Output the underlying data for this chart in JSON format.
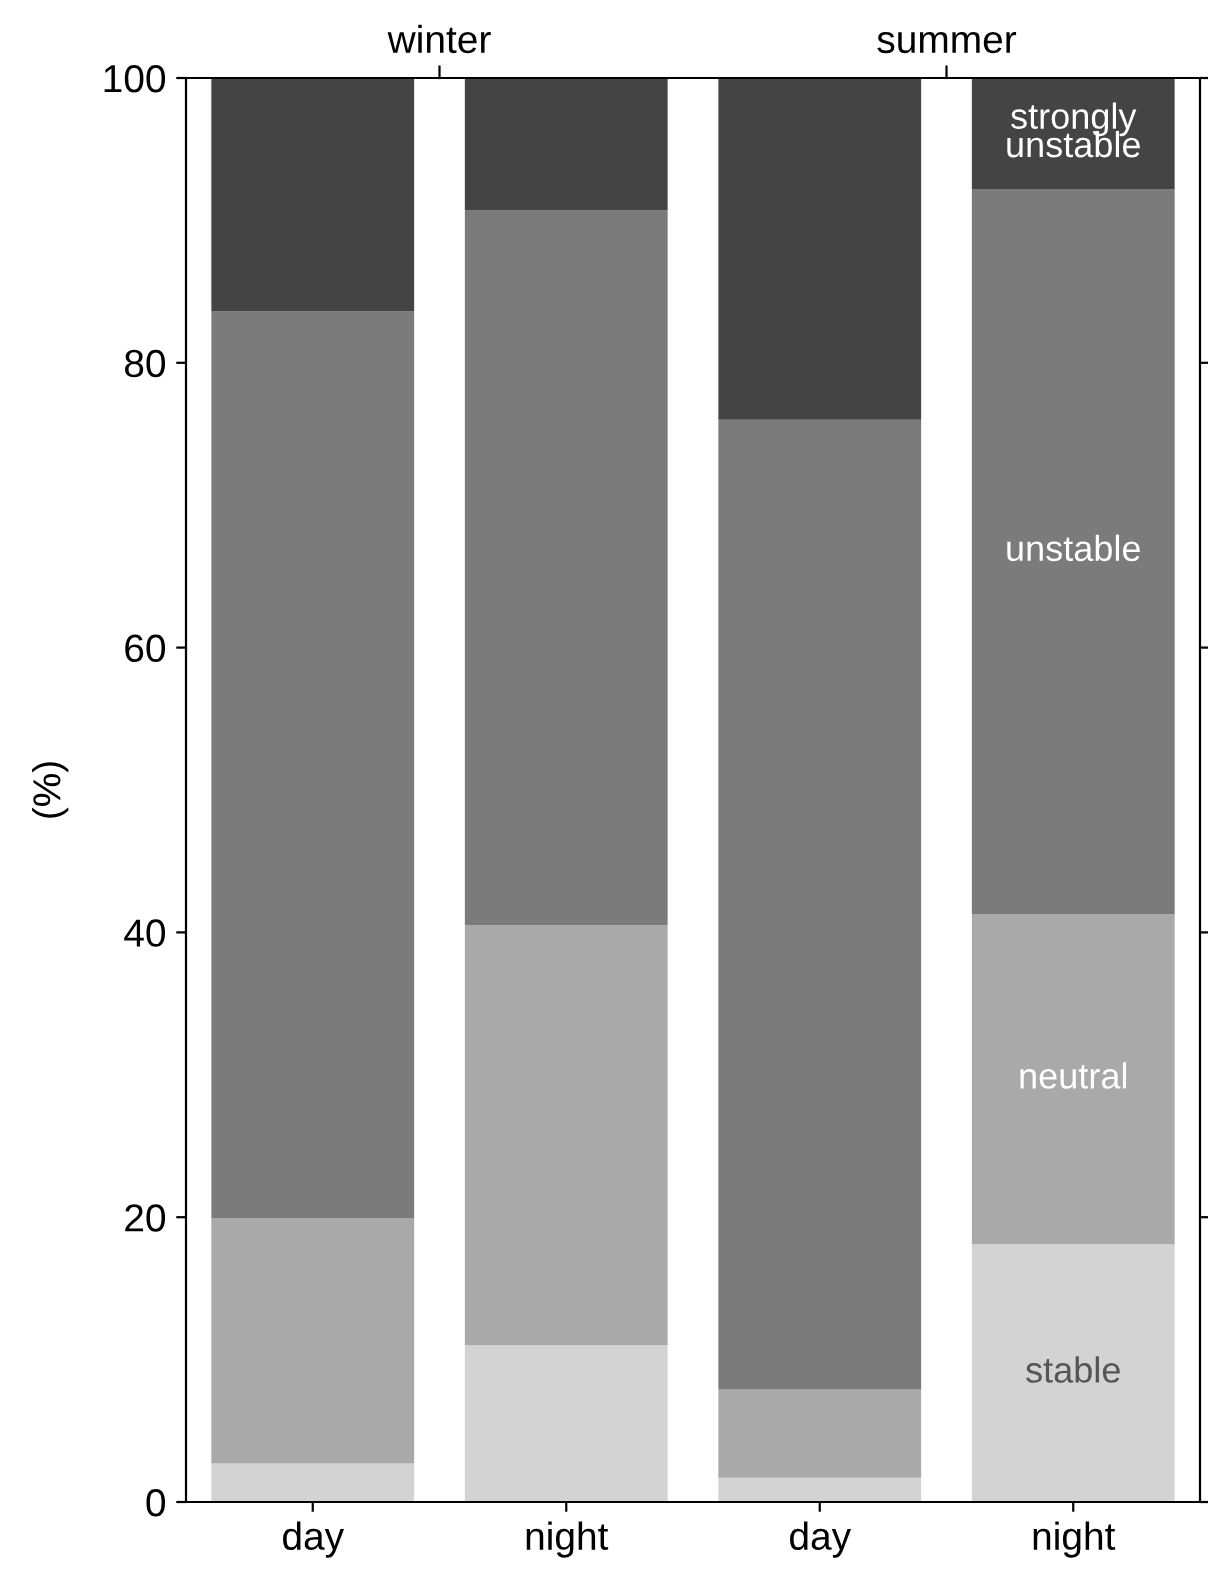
{
  "chart_data": {
    "type": "bar",
    "stacked": true,
    "ylabel": "(%)",
    "categories": [
      "day",
      "night",
      "day",
      "night"
    ],
    "ylim": [
      0,
      100
    ],
    "yticks": [
      0,
      20,
      40,
      60,
      80,
      100
    ],
    "annotations": [
      "winter",
      "summer"
    ],
    "series": [
      {
        "name": "stable",
        "color": "#d3d3d3",
        "values": [
          2.7,
          11.0,
          1.7,
          18.1
        ]
      },
      {
        "name": "neutral",
        "color": "#a9a9a9",
        "values": [
          17.2,
          29.5,
          6.2,
          23.2
        ]
      },
      {
        "name": "unstable",
        "color": "#7b7b7b",
        "values": [
          63.7,
          50.2,
          68.1,
          50.9
        ]
      },
      {
        "name": "strongly\nunstable",
        "color": "#444444",
        "values": [
          16.4,
          9.3,
          24.0,
          7.8
        ]
      }
    ],
    "grid": false,
    "legend": false
  }
}
